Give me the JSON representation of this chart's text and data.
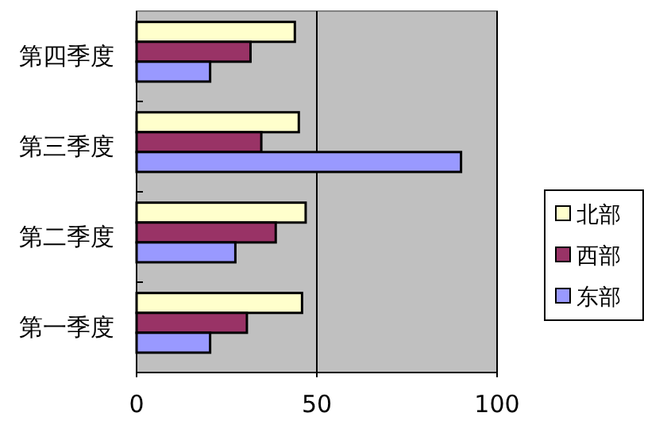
{
  "chart_data": {
    "type": "bar",
    "orientation": "horizontal",
    "categories": [
      "第四季度",
      "第三季度",
      "第二季度",
      "第一季度"
    ],
    "series": [
      {
        "name": "北部",
        "color": "#ffffcc",
        "values": [
          43.9,
          45,
          46.9,
          45.9
        ]
      },
      {
        "name": "西部",
        "color": "#993366",
        "values": [
          31.6,
          34.6,
          38.6,
          30.6
        ]
      },
      {
        "name": "东部",
        "color": "#9999ff",
        "values": [
          20.4,
          90,
          27.4,
          20.4
        ]
      }
    ],
    "xlim": [
      0,
      100
    ],
    "xticks": [
      0,
      50,
      100
    ],
    "grid": "x",
    "legend": "right"
  }
}
